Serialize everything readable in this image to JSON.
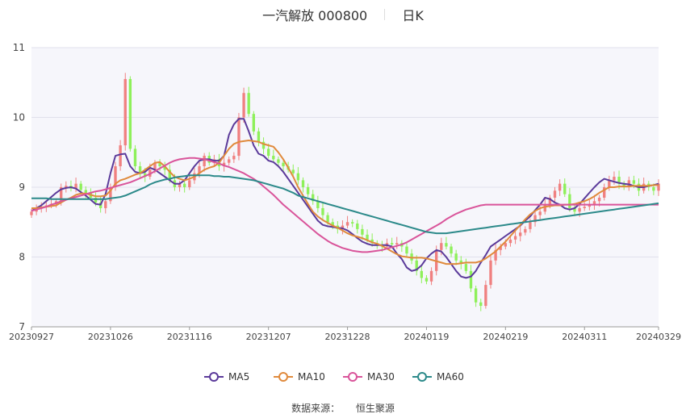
{
  "header": {
    "stock_title": "一汽解放 000800",
    "period": "日K"
  },
  "source": {
    "label": "数据来源：",
    "value": "恒生聚源"
  },
  "chart_data": {
    "type": "candlestick",
    "ylim": [
      7,
      11
    ],
    "yticks": [
      7,
      8,
      9,
      10,
      11
    ],
    "x_tick_labels": [
      "20230927",
      "20231026",
      "20231116",
      "20231207",
      "20231228",
      "20240119",
      "20240219",
      "20240311",
      "20240329"
    ],
    "x_tick_indices": [
      0,
      16,
      32,
      48,
      64,
      80,
      96,
      112,
      127
    ],
    "n_bars": 128,
    "up_color": "#f08080",
    "down_color": "#8ef05a",
    "grid": true,
    "legend_position": "bottom",
    "series": [
      {
        "name": "MA5",
        "color": "#5b3a9a"
      },
      {
        "name": "MA10",
        "color": "#e08a3c"
      },
      {
        "name": "MA30",
        "color": "#d9549a"
      },
      {
        "name": "MA60",
        "color": "#2c8a8a"
      }
    ],
    "close": [
      8.65,
      8.7,
      8.72,
      8.74,
      8.76,
      8.8,
      9.0,
      9.02,
      8.98,
      9.05,
      8.96,
      8.92,
      8.85,
      8.78,
      8.7,
      8.8,
      9.0,
      9.3,
      9.6,
      10.55,
      9.55,
      9.3,
      9.2,
      9.15,
      9.25,
      9.35,
      9.3,
      9.25,
      9.1,
      9.0,
      9.05,
      9.0,
      9.1,
      9.2,
      9.3,
      9.45,
      9.35,
      9.4,
      9.3,
      9.35,
      9.4,
      9.45,
      10.0,
      10.35,
      10.05,
      9.8,
      9.65,
      9.55,
      9.45,
      9.4,
      9.35,
      9.3,
      9.25,
      9.2,
      9.1,
      9.0,
      8.9,
      8.8,
      8.7,
      8.6,
      8.5,
      8.45,
      8.4,
      8.45,
      8.5,
      8.48,
      8.4,
      8.32,
      8.25,
      8.2,
      8.18,
      8.15,
      8.2,
      8.18,
      8.2,
      8.15,
      8.05,
      7.95,
      7.8,
      7.7,
      7.65,
      7.8,
      8.1,
      8.2,
      8.15,
      8.05,
      7.95,
      7.9,
      7.8,
      7.55,
      7.35,
      7.3,
      7.6,
      7.95,
      8.1,
      8.15,
      8.2,
      8.25,
      8.3,
      8.35,
      8.4,
      8.5,
      8.6,
      8.65,
      8.75,
      8.85,
      8.95,
      9.05,
      8.9,
      8.7,
      8.65,
      8.7,
      8.72,
      8.74,
      8.8,
      8.85,
      9.0,
      9.1,
      9.15,
      9.05,
      9.0,
      9.1,
      9.05,
      8.95,
      9.05,
      9.0,
      8.95,
      9.05
    ],
    "ma5": [
      8.66,
      8.7,
      8.74,
      8.8,
      8.86,
      8.92,
      8.97,
      8.99,
      9.0,
      8.98,
      8.93,
      8.88,
      8.82,
      8.76,
      8.75,
      8.9,
      9.2,
      9.45,
      9.47,
      9.48,
      9.3,
      9.22,
      9.2,
      9.22,
      9.28,
      9.25,
      9.2,
      9.15,
      9.1,
      9.05,
      9.05,
      9.1,
      9.2,
      9.3,
      9.38,
      9.4,
      9.4,
      9.38,
      9.38,
      9.45,
      9.75,
      9.9,
      9.98,
      9.98,
      9.8,
      9.6,
      9.48,
      9.45,
      9.38,
      9.36,
      9.3,
      9.22,
      9.12,
      9.02,
      8.92,
      8.82,
      8.72,
      8.62,
      8.52,
      8.46,
      8.44,
      8.43,
      8.42,
      8.41,
      8.38,
      8.33,
      8.27,
      8.22,
      8.19,
      8.17,
      8.17,
      8.17,
      8.17,
      8.15,
      8.05,
      7.97,
      7.85,
      7.8,
      7.82,
      7.88,
      7.98,
      8.05,
      8.1,
      8.08,
      8.0,
      7.9,
      7.8,
      7.72,
      7.7,
      7.72,
      7.8,
      7.92,
      8.03,
      8.15,
      8.2,
      8.25,
      8.3,
      8.35,
      8.4,
      8.45,
      8.52,
      8.58,
      8.67,
      8.75,
      8.85,
      8.83,
      8.78,
      8.75,
      8.7,
      8.68,
      8.7,
      8.76,
      8.84,
      8.92,
      9.0,
      9.07,
      9.12,
      9.1,
      9.08,
      9.06,
      9.05,
      9.04,
      9.02,
      9.0,
      9.0,
      9.02,
      9.03,
      9.05
    ],
    "ma10": [
      8.7,
      8.7,
      8.71,
      8.72,
      8.73,
      8.74,
      8.78,
      8.82,
      8.85,
      8.89,
      8.91,
      8.91,
      8.89,
      8.87,
      8.87,
      8.88,
      8.95,
      9.05,
      9.1,
      9.12,
      9.15,
      9.18,
      9.2,
      9.25,
      9.3,
      9.35,
      9.36,
      9.3,
      9.22,
      9.15,
      9.12,
      9.1,
      9.12,
      9.15,
      9.2,
      9.25,
      9.28,
      9.3,
      9.35,
      9.45,
      9.55,
      9.62,
      9.65,
      9.66,
      9.67,
      9.66,
      9.65,
      9.62,
      9.6,
      9.58,
      9.5,
      9.4,
      9.28,
      9.15,
      9.0,
      8.88,
      8.76,
      8.65,
      8.58,
      8.53,
      8.49,
      8.45,
      8.42,
      8.38,
      8.34,
      8.31,
      8.29,
      8.27,
      8.24,
      8.21,
      8.19,
      8.16,
      8.12,
      8.08,
      8.04,
      8.01,
      8.0,
      7.99,
      7.99,
      7.99,
      7.98,
      7.96,
      7.94,
      7.92,
      7.9,
      7.9,
      7.9,
      7.91,
      7.92,
      7.92,
      7.92,
      7.94,
      7.98,
      8.03,
      8.08,
      8.15,
      8.22,
      8.3,
      8.38,
      8.46,
      8.54,
      8.61,
      8.66,
      8.7,
      8.72,
      8.73,
      8.74,
      8.74,
      8.75,
      8.75,
      8.76,
      8.78,
      8.8,
      8.83,
      8.87,
      8.92,
      8.96,
      9.0,
      9.0,
      9.01,
      9.01,
      9.01,
      9.02,
      9.02,
      9.02,
      9.02,
      9.03,
      9.03
    ],
    "ma30": [
      8.66,
      8.68,
      8.7,
      8.72,
      8.75,
      8.77,
      8.8,
      8.82,
      8.84,
      8.86,
      8.88,
      8.9,
      8.92,
      8.94,
      8.95,
      8.97,
      8.99,
      9.01,
      9.03,
      9.05,
      9.07,
      9.1,
      9.13,
      9.16,
      9.19,
      9.23,
      9.27,
      9.31,
      9.35,
      9.38,
      9.4,
      9.41,
      9.42,
      9.42,
      9.41,
      9.4,
      9.38,
      9.36,
      9.34,
      9.31,
      9.29,
      9.26,
      9.23,
      9.2,
      9.16,
      9.12,
      9.07,
      9.01,
      8.95,
      8.89,
      8.82,
      8.75,
      8.69,
      8.63,
      8.57,
      8.51,
      8.45,
      8.39,
      8.33,
      8.28,
      8.23,
      8.19,
      8.16,
      8.13,
      8.11,
      8.09,
      8.08,
      8.07,
      8.07,
      8.08,
      8.09,
      8.1,
      8.12,
      8.14,
      8.16,
      8.18,
      8.21,
      8.25,
      8.29,
      8.33,
      8.37,
      8.41,
      8.45,
      8.49,
      8.54,
      8.58,
      8.62,
      8.65,
      8.68,
      8.7,
      8.72,
      8.74,
      8.75,
      8.75,
      8.75,
      8.75,
      8.75,
      8.75,
      8.75,
      8.75,
      8.75,
      8.75,
      8.75,
      8.75,
      8.75,
      8.75,
      8.75,
      8.75,
      8.75,
      8.75,
      8.75,
      8.75,
      8.75,
      8.75,
      8.75,
      8.75,
      8.75,
      8.75,
      8.75,
      8.75,
      8.75,
      8.75,
      8.75,
      8.75,
      8.75,
      8.75,
      8.75,
      8.75
    ],
    "ma60": [
      8.84,
      8.84,
      8.84,
      8.84,
      8.83,
      8.83,
      8.83,
      8.83,
      8.83,
      8.83,
      8.83,
      8.83,
      8.83,
      8.83,
      8.83,
      8.83,
      8.84,
      8.85,
      8.86,
      8.88,
      8.91,
      8.94,
      8.97,
      9.0,
      9.04,
      9.07,
      9.09,
      9.11,
      9.12,
      9.14,
      9.15,
      9.16,
      9.17,
      9.17,
      9.17,
      9.17,
      9.17,
      9.16,
      9.16,
      9.15,
      9.15,
      9.14,
      9.13,
      9.12,
      9.11,
      9.1,
      9.08,
      9.06,
      9.04,
      9.02,
      9.0,
      8.98,
      8.95,
      8.92,
      8.88,
      8.86,
      8.84,
      8.82,
      8.8,
      8.78,
      8.76,
      8.74,
      8.72,
      8.7,
      8.68,
      8.66,
      8.64,
      8.62,
      8.6,
      8.58,
      8.56,
      8.54,
      8.52,
      8.5,
      8.48,
      8.46,
      8.44,
      8.42,
      8.4,
      8.38,
      8.36,
      8.35,
      8.34,
      8.34,
      8.34,
      8.35,
      8.36,
      8.37,
      8.38,
      8.39,
      8.4,
      8.41,
      8.42,
      8.43,
      8.44,
      8.45,
      8.46,
      8.47,
      8.48,
      8.49,
      8.5,
      8.51,
      8.52,
      8.53,
      8.54,
      8.55,
      8.56,
      8.57,
      8.58,
      8.59,
      8.6,
      8.61,
      8.62,
      8.63,
      8.64,
      8.65,
      8.66,
      8.67,
      8.68,
      8.69,
      8.7,
      8.71,
      8.72,
      8.73,
      8.74,
      8.75,
      8.76,
      8.77
    ]
  }
}
